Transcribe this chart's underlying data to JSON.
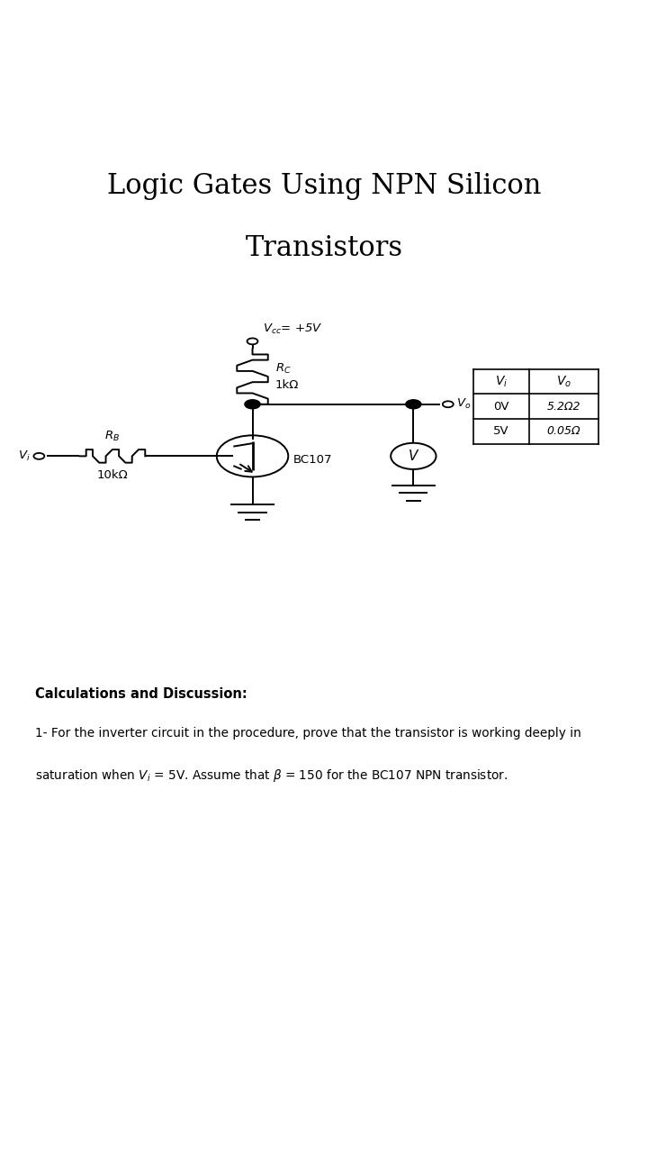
{
  "title_line1": "Logic Gates Using NPN Silicon",
  "title_line2": "Transistors",
  "title_bg_color": "#d4d4d4",
  "page_bg_color": "#ffffff",
  "circuit_bg_color": "#cccac7",
  "circuit_label_vcc": "V$_{cc}$= +5V",
  "circuit_label_rc": "R$_C$",
  "circuit_label_rc_val": "1kΩ",
  "circuit_label_rb": "R$_B$",
  "circuit_label_rb_val": "10kΩ",
  "circuit_label_bc107": "BC107",
  "circuit_label_vo": "V$_o$",
  "circuit_label_vi": "V$_i$",
  "circuit_label_v": "V",
  "table_header_vi": "$V_i$",
  "table_header_vo": "$V_o$",
  "table_row1_vi": "0V",
  "table_row1_vo": "5.2Ω2",
  "table_row2_vi": "5V",
  "table_row2_vo": "0.05Ω",
  "calc_title": "Calculations and Discussion:",
  "calc_line1": "1- For the inverter circuit in the procedure, prove that the transistor is working deeply in",
  "calc_line2": "saturation when $V_i$ = 5V. Assume that $\\beta$ = 150 for the BC107 NPN transistor.",
  "calc_bg_color": "#d4d4d4"
}
